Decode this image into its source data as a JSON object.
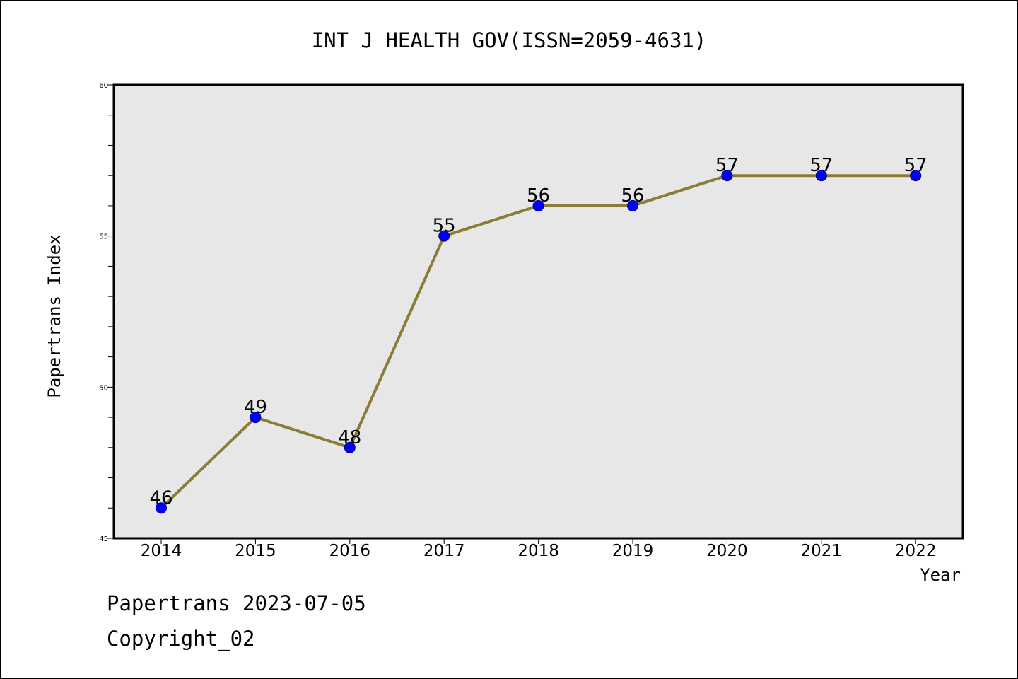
{
  "chart_data": {
    "type": "line",
    "title": "INT J HEALTH GOV(ISSN=2059-4631)",
    "xlabel": "Year",
    "ylabel": "Papertrans Index",
    "categories": [
      "2014",
      "2015",
      "2016",
      "2017",
      "2018",
      "2019",
      "2020",
      "2021",
      "2022"
    ],
    "values": [
      46,
      49,
      48,
      55,
      56,
      56,
      57,
      57,
      57
    ],
    "data_labels": [
      "46",
      "49",
      "48",
      "55",
      "56",
      "56",
      "57",
      "57",
      "57"
    ],
    "ylim": [
      45,
      60
    ],
    "yticks": [
      45,
      50,
      55,
      60
    ],
    "ytick_labels": [
      "45",
      "50",
      "55",
      "60"
    ],
    "y_minor_step": 1,
    "grid": false,
    "legend": "none",
    "colors": {
      "line": "#8B7D35",
      "marker": "#0000FF",
      "marker_edge": "#000080",
      "plot_background": "#E7E7E7",
      "frame": "#000000"
    }
  },
  "footer": {
    "source": "Papertrans 2023-07-05",
    "copyright": "Copyright_02"
  }
}
